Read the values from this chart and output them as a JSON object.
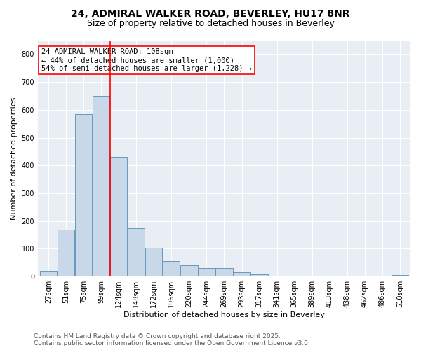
{
  "title_line1": "24, ADMIRAL WALKER ROAD, BEVERLEY, HU17 8NR",
  "title_line2": "Size of property relative to detached houses in Beverley",
  "xlabel": "Distribution of detached houses by size in Beverley",
  "ylabel": "Number of detached properties",
  "bin_labels": [
    "27sqm",
    "51sqm",
    "75sqm",
    "99sqm",
    "124sqm",
    "148sqm",
    "172sqm",
    "196sqm",
    "220sqm",
    "244sqm",
    "269sqm",
    "293sqm",
    "317sqm",
    "341sqm",
    "365sqm",
    "389sqm",
    "413sqm",
    "438sqm",
    "462sqm",
    "486sqm",
    "510sqm"
  ],
  "bar_heights": [
    20,
    170,
    585,
    650,
    430,
    175,
    103,
    55,
    40,
    30,
    30,
    15,
    8,
    3,
    2,
    1,
    1,
    0,
    1,
    0,
    5
  ],
  "bar_color": "#c8d8e8",
  "bar_edge_color": "#6699bb",
  "bar_edge_width": 0.7,
  "vline_index": 3.5,
  "vline_color": "red",
  "annotation_text": "24 ADMIRAL WALKER ROAD: 108sqm\n← 44% of detached houses are smaller (1,000)\n54% of semi-detached houses are larger (1,228) →",
  "annotation_box_color": "white",
  "annotation_box_edge_color": "red",
  "ylim": [
    0,
    850
  ],
  "yticks": [
    0,
    100,
    200,
    300,
    400,
    500,
    600,
    700,
    800
  ],
  "background_color": "#e8eef4",
  "footer_line1": "Contains HM Land Registry data © Crown copyright and database right 2025.",
  "footer_line2": "Contains public sector information licensed under the Open Government Licence v3.0.",
  "title_fontsize": 10,
  "subtitle_fontsize": 9,
  "axis_label_fontsize": 8,
  "tick_fontsize": 7,
  "annotation_fontsize": 7.5,
  "footer_fontsize": 6.5
}
